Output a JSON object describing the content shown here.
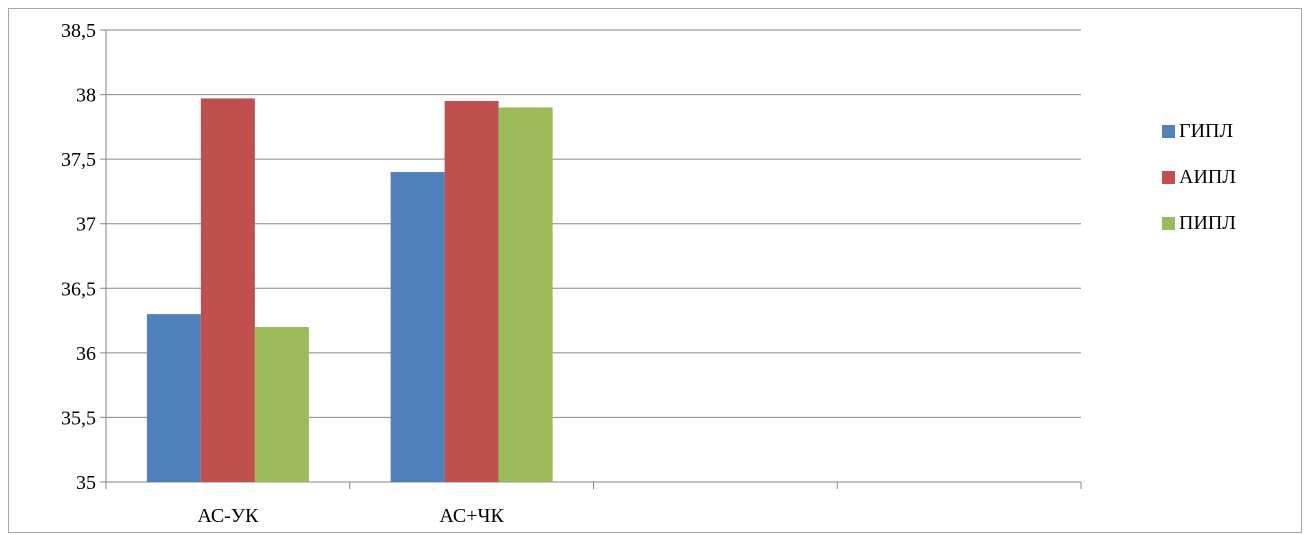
{
  "chart_data": {
    "type": "bar",
    "categories": [
      "АС-УК",
      "АС+ЧК",
      "",
      ""
    ],
    "series": [
      {
        "name": "ГИПЛ",
        "color": "#4f81bd",
        "values": [
          36.3,
          37.4,
          null,
          null
        ]
      },
      {
        "name": "АИПЛ",
        "color": "#c0504d",
        "values": [
          37.97,
          37.95,
          null,
          null
        ]
      },
      {
        "name": "ПИПЛ",
        "color": "#9bbb59",
        "values": [
          36.2,
          37.9,
          null,
          null
        ]
      }
    ],
    "yticks": [
      "35",
      "35,5",
      "36",
      "36,5",
      "37",
      "37,5",
      "38",
      "38,5"
    ],
    "ylim": [
      35,
      38.5
    ],
    "grid": true,
    "legend_position": "right"
  }
}
